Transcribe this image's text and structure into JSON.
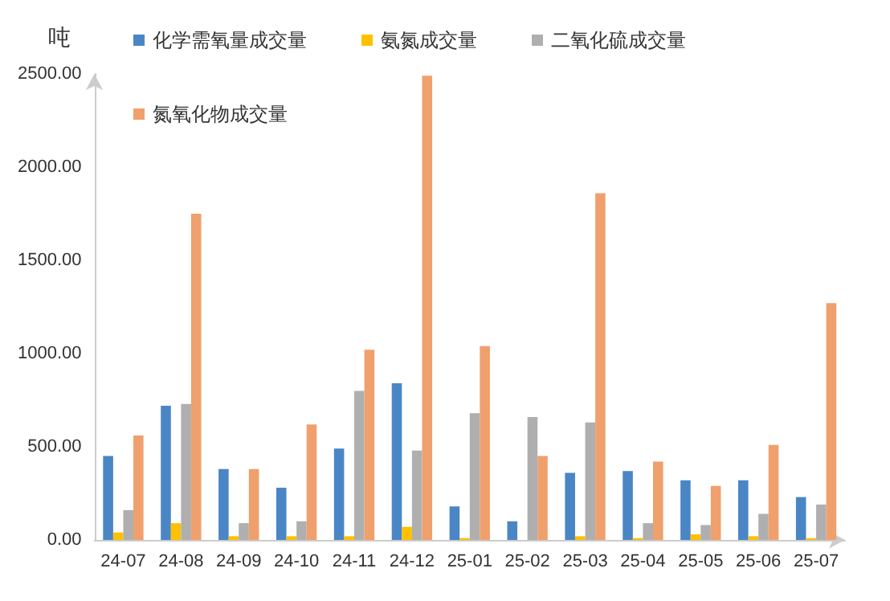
{
  "chart_data": {
    "type": "bar",
    "ylabel": "吨",
    "categories": [
      "24-07",
      "24-08",
      "24-09",
      "24-10",
      "24-11",
      "24-12",
      "25-01",
      "25-02",
      "25-03",
      "25-04",
      "25-05",
      "25-06",
      "25-07"
    ],
    "series": [
      {
        "name": "化学需氧量成交量",
        "color": "#4a86c5",
        "values": [
          450,
          720,
          380,
          280,
          490,
          840,
          180,
          100,
          360,
          370,
          320,
          320,
          230
        ]
      },
      {
        "name": "氨氮成交量",
        "color": "#ffc000",
        "values": [
          40,
          90,
          20,
          20,
          20,
          70,
          10,
          0,
          20,
          10,
          30,
          20,
          10
        ]
      },
      {
        "name": "二氧化硫成交量",
        "color": "#afafaf",
        "values": [
          160,
          730,
          90,
          100,
          800,
          480,
          680,
          660,
          630,
          90,
          80,
          140,
          190
        ]
      },
      {
        "name": "氮氧化物成交量",
        "color": "#f0a06c",
        "values": [
          560,
          1750,
          380,
          620,
          1020,
          2490,
          1040,
          450,
          1860,
          420,
          290,
          510,
          1270
        ]
      }
    ],
    "ylim": [
      0,
      2500
    ],
    "yticks": [
      {
        "value": 0,
        "label": "0.00"
      },
      {
        "value": 500,
        "label": "500.00"
      },
      {
        "value": 1000,
        "label": "1000.00"
      },
      {
        "value": 1500,
        "label": "1500.00"
      },
      {
        "value": 2000,
        "label": "2000.00"
      },
      {
        "value": 2500,
        "label": "2500.00"
      }
    ],
    "grid": false,
    "legend": "top"
  }
}
